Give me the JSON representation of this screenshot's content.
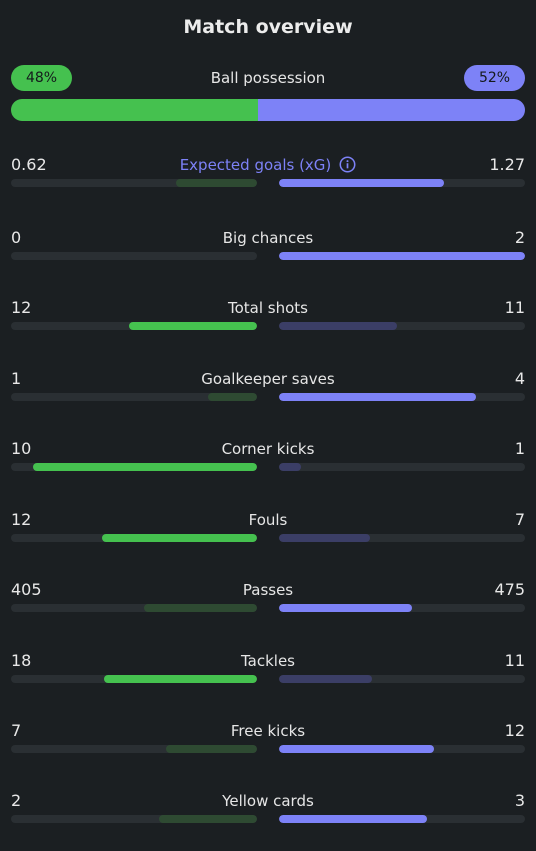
{
  "title": "Match overview",
  "colors": {
    "home_strong": "#45c14f",
    "home_weak": "#2e4a32",
    "away_strong": "#7d82f7",
    "away_weak": "#3b3e66",
    "track": "#2a2f33"
  },
  "possession": {
    "label": "Ball possession",
    "home": "48%",
    "away": "52%",
    "home_value": 48,
    "away_value": 52
  },
  "stats": [
    {
      "label": "Expected goals (xG)",
      "home": "0.62",
      "away": "1.27",
      "home_num": 0.62,
      "away_num": 1.27,
      "info_icon": "info-icon"
    },
    {
      "label": "Big chances",
      "home": "0",
      "away": "2",
      "home_num": 0,
      "away_num": 2
    },
    {
      "label": "Total shots",
      "home": "12",
      "away": "11",
      "home_num": 12,
      "away_num": 11
    },
    {
      "label": "Goalkeeper saves",
      "home": "1",
      "away": "4",
      "home_num": 1,
      "away_num": 4
    },
    {
      "label": "Corner kicks",
      "home": "10",
      "away": "1",
      "home_num": 10,
      "away_num": 1
    },
    {
      "label": "Fouls",
      "home": "12",
      "away": "7",
      "home_num": 12,
      "away_num": 7
    },
    {
      "label": "Passes",
      "home": "405",
      "away": "475",
      "home_num": 405,
      "away_num": 475
    },
    {
      "label": "Tackles",
      "home": "18",
      "away": "11",
      "home_num": 18,
      "away_num": 11
    },
    {
      "label": "Free kicks",
      "home": "7",
      "away": "12",
      "home_num": 7,
      "away_num": 12
    },
    {
      "label": "Yellow cards",
      "home": "2",
      "away": "3",
      "home_num": 2,
      "away_num": 3
    }
  ]
}
